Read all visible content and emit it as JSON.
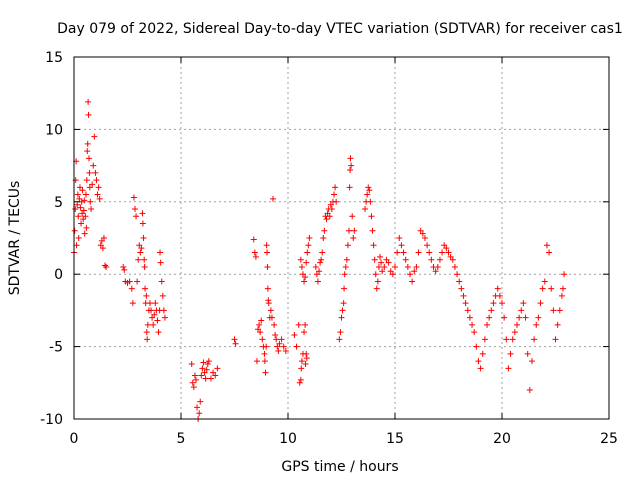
{
  "chart_data": {
    "type": "scatter",
    "title": "Day 079 of 2022, Sidereal Day-to-day VTEC variation (SDTVAR) for receiver cas1",
    "xlabel": "GPS time / hours",
    "ylabel": "SDTVAR / TECUs",
    "xlim": [
      0,
      25
    ],
    "ylim": [
      -10,
      15
    ],
    "xticks": [
      0,
      5,
      10,
      15,
      20,
      25
    ],
    "yticks": [
      -10,
      -5,
      0,
      5,
      10,
      15
    ],
    "xtick_labels": [
      "0",
      "5",
      "10",
      "15",
      "20",
      "25"
    ],
    "ytick_labels": [
      "-10",
      "-5",
      "0",
      "5",
      "10",
      "15"
    ],
    "grid": true,
    "marker": "+",
    "color": "#ff0000",
    "series": [
      {
        "name": "SDTVAR",
        "points": [
          [
            0.0,
            1.5
          ],
          [
            0.03,
            3.0
          ],
          [
            0.06,
            4.5
          ],
          [
            0.08,
            6.5
          ],
          [
            0.1,
            7.8
          ],
          [
            0.12,
            2.0
          ],
          [
            0.15,
            4.8
          ],
          [
            0.18,
            5.5
          ],
          [
            0.2,
            4.0
          ],
          [
            0.22,
            2.5
          ],
          [
            0.25,
            5.2
          ],
          [
            0.28,
            6.0
          ],
          [
            0.3,
            4.6
          ],
          [
            0.33,
            3.5
          ],
          [
            0.36,
            5.0
          ],
          [
            0.38,
            4.2
          ],
          [
            0.4,
            5.8
          ],
          [
            0.43,
            3.8
          ],
          [
            0.46,
            4.4
          ],
          [
            0.48,
            5.1
          ],
          [
            0.5,
            2.8
          ],
          [
            0.53,
            4.0
          ],
          [
            0.56,
            5.5
          ],
          [
            0.58,
            3.2
          ],
          [
            0.6,
            6.5
          ],
          [
            0.62,
            8.5
          ],
          [
            0.64,
            9.0
          ],
          [
            0.66,
            11.9
          ],
          [
            0.68,
            11.0
          ],
          [
            0.7,
            8.0
          ],
          [
            0.72,
            7.0
          ],
          [
            0.74,
            6.0
          ],
          [
            0.76,
            5.0
          ],
          [
            0.8,
            4.5
          ],
          [
            0.85,
            6.2
          ],
          [
            0.9,
            7.5
          ],
          [
            0.95,
            9.5
          ],
          [
            1.0,
            7.0
          ],
          [
            1.05,
            6.5
          ],
          [
            1.1,
            5.5
          ],
          [
            1.15,
            6.0
          ],
          [
            1.2,
            5.2
          ],
          [
            1.25,
            2.0
          ],
          [
            1.3,
            2.3
          ],
          [
            1.35,
            1.8
          ],
          [
            1.4,
            2.5
          ],
          [
            1.45,
            0.6
          ],
          [
            1.5,
            0.5
          ],
          [
            2.3,
            0.5
          ],
          [
            2.35,
            0.3
          ],
          [
            2.4,
            -0.5
          ],
          [
            2.5,
            -0.6
          ],
          [
            2.6,
            -0.5
          ],
          [
            2.7,
            -1.0
          ],
          [
            2.75,
            -2.0
          ],
          [
            2.8,
            5.3
          ],
          [
            2.85,
            4.5
          ],
          [
            2.9,
            4.0
          ],
          [
            2.95,
            -0.5
          ],
          [
            3.0,
            1.0
          ],
          [
            3.05,
            2.0
          ],
          [
            3.1,
            1.5
          ],
          [
            3.15,
            1.8
          ],
          [
            3.2,
            4.2
          ],
          [
            3.22,
            3.5
          ],
          [
            3.25,
            2.5
          ],
          [
            3.28,
            1.0
          ],
          [
            3.3,
            0.5
          ],
          [
            3.32,
            -1.0
          ],
          [
            3.35,
            -2.0
          ],
          [
            3.38,
            -1.5
          ],
          [
            3.4,
            -4.0
          ],
          [
            3.42,
            -4.5
          ],
          [
            3.45,
            -3.5
          ],
          [
            3.5,
            -2.5
          ],
          [
            3.55,
            -2.0
          ],
          [
            3.6,
            -2.5
          ],
          [
            3.65,
            -3.0
          ],
          [
            3.7,
            -3.5
          ],
          [
            3.75,
            -2.8
          ],
          [
            3.8,
            -2.0
          ],
          [
            3.85,
            -2.5
          ],
          [
            3.9,
            -3.2
          ],
          [
            3.95,
            -4.0
          ],
          [
            4.0,
            -2.5
          ],
          [
            4.02,
            1.5
          ],
          [
            4.05,
            0.8
          ],
          [
            4.1,
            -0.5
          ],
          [
            4.15,
            -1.5
          ],
          [
            4.2,
            -2.5
          ],
          [
            4.25,
            -3.0
          ],
          [
            5.5,
            -6.2
          ],
          [
            5.55,
            -7.5
          ],
          [
            5.6,
            -7.8
          ],
          [
            5.65,
            -7.0
          ],
          [
            5.7,
            -7.3
          ],
          [
            5.75,
            -9.2
          ],
          [
            5.8,
            -10.0
          ],
          [
            5.85,
            -9.6
          ],
          [
            5.9,
            -8.8
          ],
          [
            5.95,
            -7.0
          ],
          [
            6.0,
            -6.5
          ],
          [
            6.05,
            -6.1
          ],
          [
            6.1,
            -6.8
          ],
          [
            6.15,
            -7.2
          ],
          [
            6.2,
            -6.6
          ],
          [
            6.25,
            -6.2
          ],
          [
            6.3,
            -6.0
          ],
          [
            6.4,
            -7.2
          ],
          [
            6.5,
            -6.8
          ],
          [
            6.6,
            -7.0
          ],
          [
            6.7,
            -6.5
          ],
          [
            7.5,
            -4.5
          ],
          [
            7.55,
            -4.8
          ],
          [
            8.4,
            2.4
          ],
          [
            8.45,
            1.5
          ],
          [
            8.5,
            1.2
          ],
          [
            8.55,
            -6.0
          ],
          [
            8.6,
            -3.8
          ],
          [
            8.65,
            -3.5
          ],
          [
            8.7,
            -4.0
          ],
          [
            8.75,
            -3.2
          ],
          [
            8.8,
            -4.5
          ],
          [
            8.85,
            -5.0
          ],
          [
            8.9,
            -5.5
          ],
          [
            8.92,
            -6.0
          ],
          [
            8.95,
            -6.8
          ],
          [
            8.98,
            -5.0
          ],
          [
            9.0,
            2.0
          ],
          [
            9.02,
            1.5
          ],
          [
            9.04,
            0.5
          ],
          [
            9.06,
            -1.0
          ],
          [
            9.08,
            -1.8
          ],
          [
            9.1,
            -2.0
          ],
          [
            9.15,
            -3.0
          ],
          [
            9.2,
            -2.5
          ],
          [
            9.25,
            -3.0
          ],
          [
            9.3,
            5.2
          ],
          [
            9.35,
            -3.5
          ],
          [
            9.4,
            -4.2
          ],
          [
            9.45,
            -4.5
          ],
          [
            9.5,
            -5.0
          ],
          [
            9.55,
            -5.3
          ],
          [
            9.6,
            -4.8
          ],
          [
            9.7,
            -4.5
          ],
          [
            9.8,
            -5.0
          ],
          [
            9.9,
            -5.3
          ],
          [
            10.3,
            -4.2
          ],
          [
            10.4,
            -5.0
          ],
          [
            10.5,
            -3.5
          ],
          [
            10.55,
            -7.5
          ],
          [
            10.6,
            -7.3
          ],
          [
            10.62,
            -6.5
          ],
          [
            10.65,
            -6.0
          ],
          [
            10.7,
            -5.5
          ],
          [
            10.75,
            -4.0
          ],
          [
            10.8,
            -3.5
          ],
          [
            10.82,
            -6.2
          ],
          [
            10.85,
            -5.5
          ],
          [
            10.88,
            -5.8
          ],
          [
            10.6,
            1.0
          ],
          [
            10.65,
            0.5
          ],
          [
            10.7,
            0.0
          ],
          [
            10.75,
            -0.5
          ],
          [
            10.8,
            -0.2
          ],
          [
            10.85,
            0.8
          ],
          [
            10.9,
            1.5
          ],
          [
            10.95,
            2.0
          ],
          [
            11.0,
            2.5
          ],
          [
            11.3,
            0.5
          ],
          [
            11.35,
            0.0
          ],
          [
            11.4,
            -0.5
          ],
          [
            11.45,
            0.2
          ],
          [
            11.5,
            0.8
          ],
          [
            11.55,
            1.0
          ],
          [
            11.6,
            1.5
          ],
          [
            11.65,
            2.5
          ],
          [
            11.7,
            3.0
          ],
          [
            11.75,
            4.0
          ],
          [
            11.8,
            3.8
          ],
          [
            11.85,
            4.2
          ],
          [
            11.9,
            4.5
          ],
          [
            11.95,
            4.0
          ],
          [
            12.0,
            4.8
          ],
          [
            12.05,
            4.5
          ],
          [
            12.1,
            5.0
          ],
          [
            12.15,
            5.5
          ],
          [
            12.2,
            6.0
          ],
          [
            12.25,
            5.0
          ],
          [
            12.4,
            -4.5
          ],
          [
            12.45,
            -4.0
          ],
          [
            12.5,
            -3.0
          ],
          [
            12.55,
            -2.5
          ],
          [
            12.6,
            -2.0
          ],
          [
            12.62,
            -1.0
          ],
          [
            12.65,
            0.0
          ],
          [
            12.7,
            0.5
          ],
          [
            12.75,
            1.0
          ],
          [
            12.8,
            2.0
          ],
          [
            12.85,
            3.0
          ],
          [
            12.88,
            6.0
          ],
          [
            12.9,
            7.2
          ],
          [
            12.92,
            8.0
          ],
          [
            12.95,
            7.5
          ],
          [
            13.0,
            4.0
          ],
          [
            13.05,
            2.5
          ],
          [
            13.1,
            3.0
          ],
          [
            13.6,
            4.5
          ],
          [
            13.65,
            5.0
          ],
          [
            13.7,
            5.5
          ],
          [
            13.75,
            6.0
          ],
          [
            13.8,
            5.8
          ],
          [
            13.85,
            5.0
          ],
          [
            13.9,
            4.0
          ],
          [
            13.95,
            3.0
          ],
          [
            14.0,
            2.0
          ],
          [
            14.05,
            1.0
          ],
          [
            14.1,
            0.0
          ],
          [
            14.15,
            -1.0
          ],
          [
            14.2,
            -0.5
          ],
          [
            14.25,
            0.5
          ],
          [
            14.3,
            1.2
          ],
          [
            14.35,
            0.8
          ],
          [
            14.4,
            0.2
          ],
          [
            14.5,
            0.5
          ],
          [
            14.6,
            1.0
          ],
          [
            14.7,
            0.8
          ],
          [
            14.8,
            0.2
          ],
          [
            14.9,
            0.0
          ],
          [
            15.0,
            0.5
          ],
          [
            15.1,
            1.5
          ],
          [
            15.2,
            2.5
          ],
          [
            15.3,
            2.0
          ],
          [
            15.4,
            1.5
          ],
          [
            15.5,
            1.0
          ],
          [
            15.6,
            0.5
          ],
          [
            15.7,
            0.0
          ],
          [
            15.8,
            -0.5
          ],
          [
            15.9,
            0.2
          ],
          [
            16.0,
            0.5
          ],
          [
            16.1,
            1.5
          ],
          [
            16.2,
            3.0
          ],
          [
            16.3,
            2.8
          ],
          [
            16.4,
            2.5
          ],
          [
            16.5,
            2.0
          ],
          [
            16.6,
            1.5
          ],
          [
            16.7,
            1.0
          ],
          [
            16.8,
            0.5
          ],
          [
            16.9,
            0.2
          ],
          [
            17.0,
            0.5
          ],
          [
            17.1,
            1.0
          ],
          [
            17.2,
            1.5
          ],
          [
            17.3,
            2.0
          ],
          [
            17.4,
            1.8
          ],
          [
            17.5,
            1.5
          ],
          [
            17.6,
            1.2
          ],
          [
            17.7,
            1.0
          ],
          [
            17.8,
            0.5
          ],
          [
            17.9,
            0.0
          ],
          [
            18.0,
            -0.5
          ],
          [
            18.1,
            -1.0
          ],
          [
            18.2,
            -1.5
          ],
          [
            18.3,
            -2.0
          ],
          [
            18.4,
            -2.5
          ],
          [
            18.5,
            -3.0
          ],
          [
            18.6,
            -3.5
          ],
          [
            18.7,
            -4.0
          ],
          [
            18.8,
            -5.0
          ],
          [
            18.9,
            -6.0
          ],
          [
            19.0,
            -6.5
          ],
          [
            19.1,
            -5.5
          ],
          [
            19.2,
            -4.5
          ],
          [
            19.3,
            -3.5
          ],
          [
            19.4,
            -3.0
          ],
          [
            19.5,
            -2.5
          ],
          [
            19.6,
            -2.0
          ],
          [
            19.7,
            -1.5
          ],
          [
            19.8,
            -1.0
          ],
          [
            19.9,
            -1.5
          ],
          [
            20.0,
            -2.0
          ],
          [
            20.1,
            -3.0
          ],
          [
            20.2,
            -4.5
          ],
          [
            20.3,
            -6.5
          ],
          [
            20.4,
            -5.5
          ],
          [
            20.5,
            -4.5
          ],
          [
            20.6,
            -4.0
          ],
          [
            20.7,
            -3.5
          ],
          [
            20.8,
            -3.0
          ],
          [
            20.9,
            -2.5
          ],
          [
            21.0,
            -2.0
          ],
          [
            21.1,
            -3.0
          ],
          [
            21.2,
            -5.5
          ],
          [
            21.3,
            -8.0
          ],
          [
            21.4,
            -6.0
          ],
          [
            21.5,
            -4.5
          ],
          [
            21.6,
            -3.5
          ],
          [
            21.7,
            -3.0
          ],
          [
            21.8,
            -2.0
          ],
          [
            21.9,
            -1.0
          ],
          [
            22.0,
            -0.5
          ],
          [
            22.1,
            2.0
          ],
          [
            22.2,
            1.5
          ],
          [
            22.3,
            -1.0
          ],
          [
            22.4,
            -2.5
          ],
          [
            22.5,
            -4.5
          ],
          [
            22.6,
            -3.5
          ],
          [
            22.7,
            -2.5
          ],
          [
            22.8,
            -1.5
          ],
          [
            22.85,
            -1.0
          ],
          [
            22.9,
            0.0
          ]
        ]
      }
    ]
  }
}
